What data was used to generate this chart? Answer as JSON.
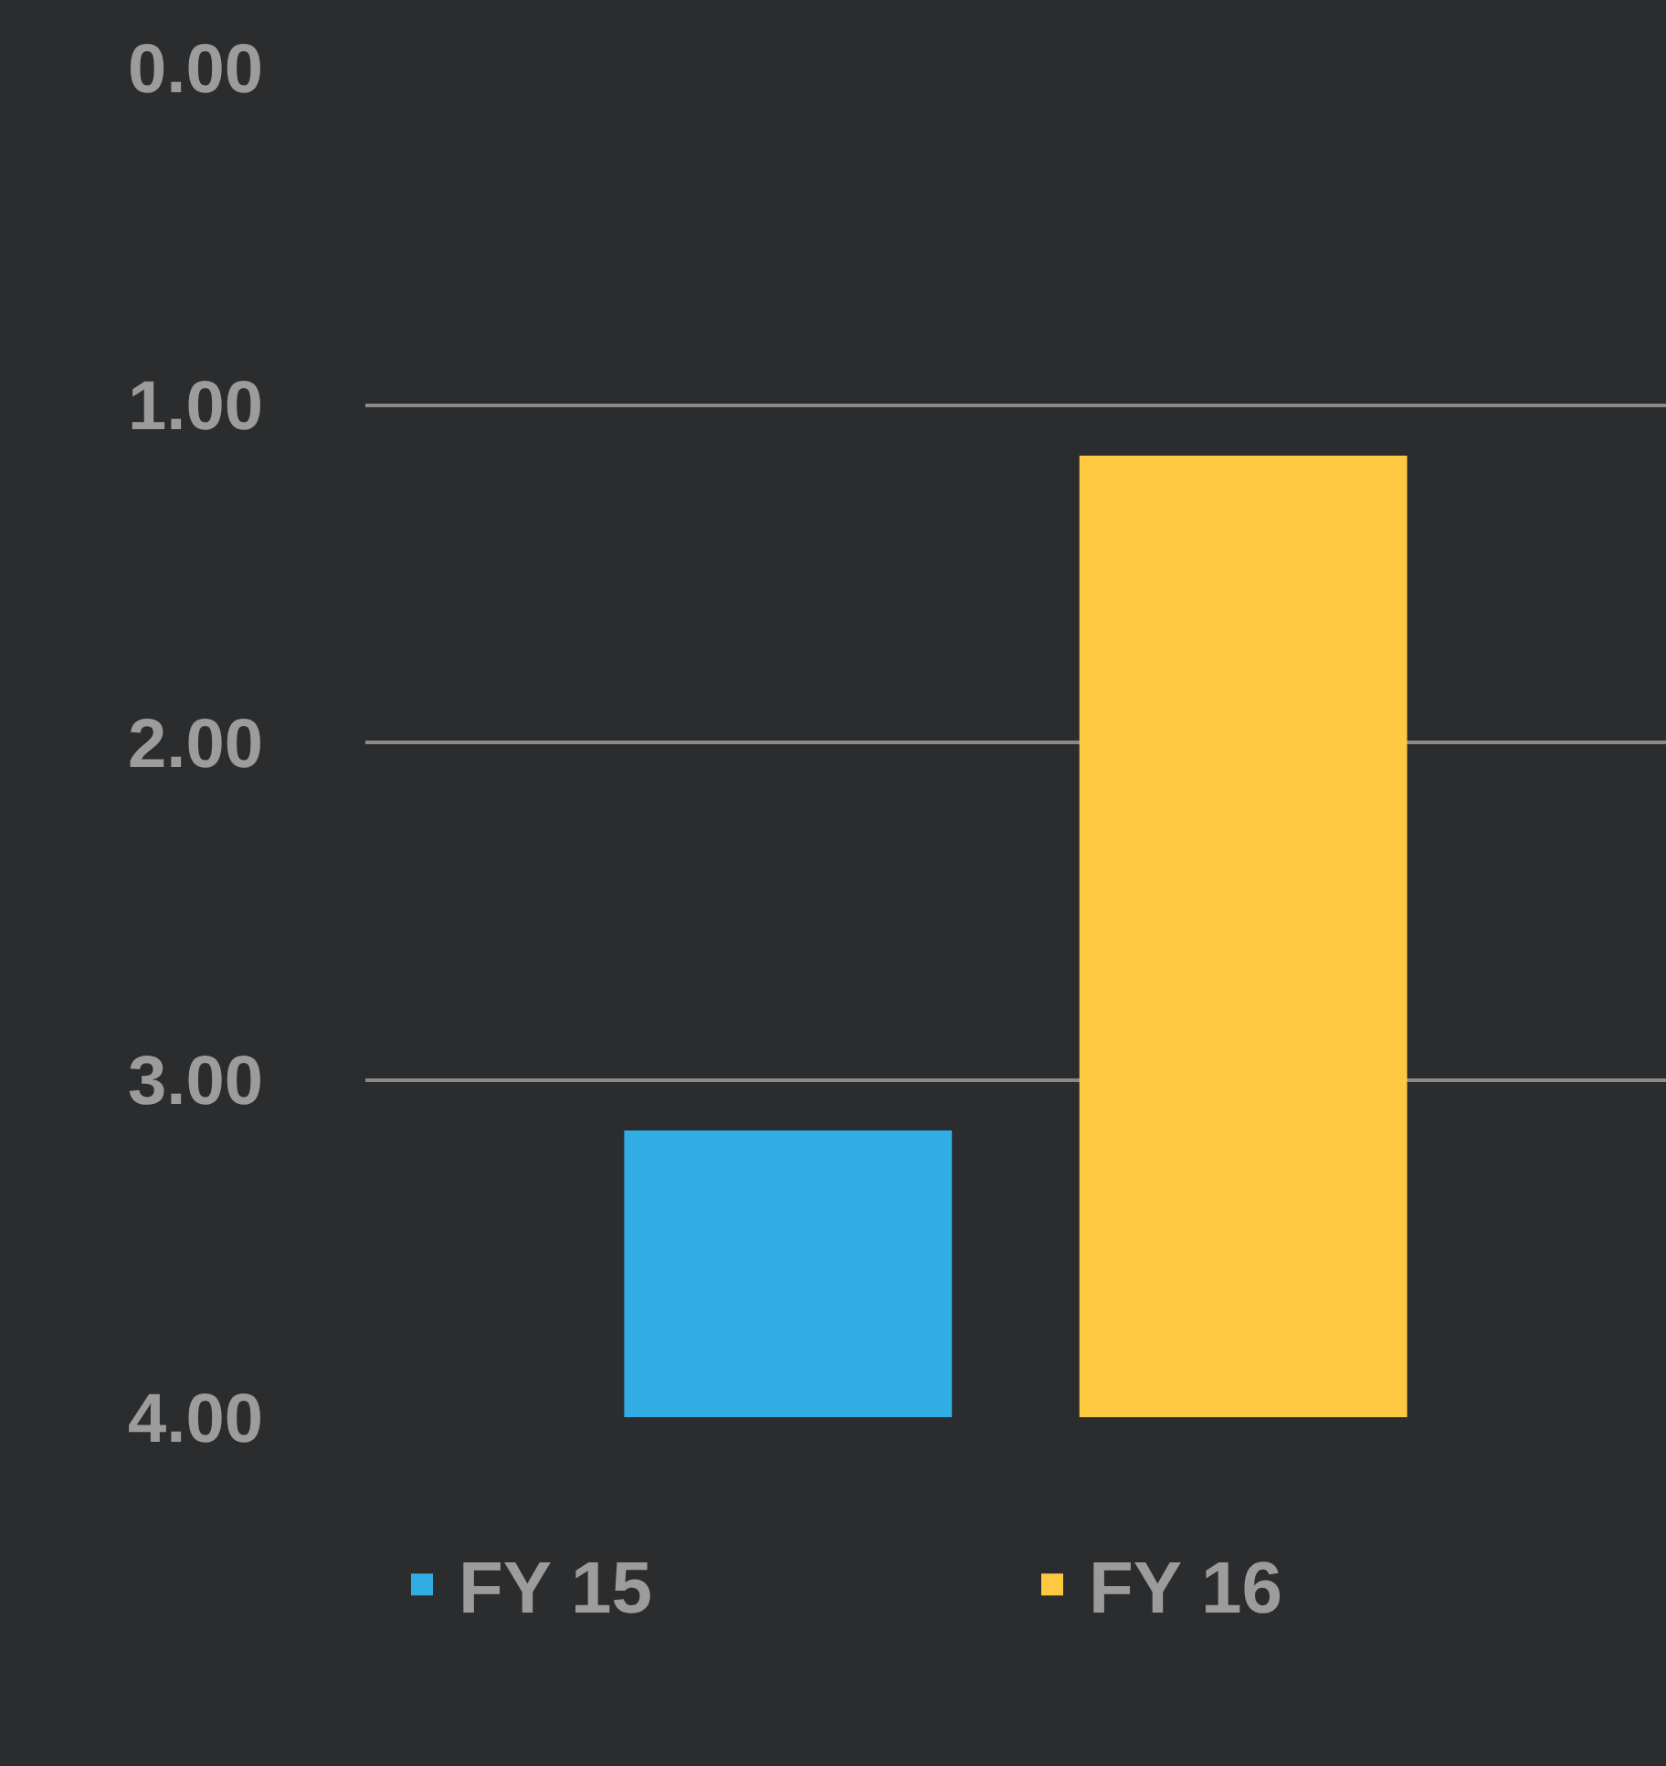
{
  "chart_data": {
    "type": "bar",
    "categories": [
      null
    ],
    "series": [
      {
        "name": "FY 15",
        "color": "#31ade3",
        "values": [
          -0.85
        ],
        "base": [
          4
        ]
      },
      {
        "name": "FY 16",
        "color": "#fec841",
        "values": [
          -2.85
        ],
        "base": [
          4
        ]
      }
    ],
    "ylim": [
      4,
      0
    ],
    "yticks": [
      {
        "value": 0,
        "label": "0.00"
      },
      {
        "value": 1,
        "label": "1.00"
      },
      {
        "value": 2,
        "label": "2.00"
      },
      {
        "value": 3,
        "label": "3.00"
      },
      {
        "value": 4,
        "label": "4.00"
      }
    ],
    "grid": "y",
    "legend": "bottom"
  }
}
